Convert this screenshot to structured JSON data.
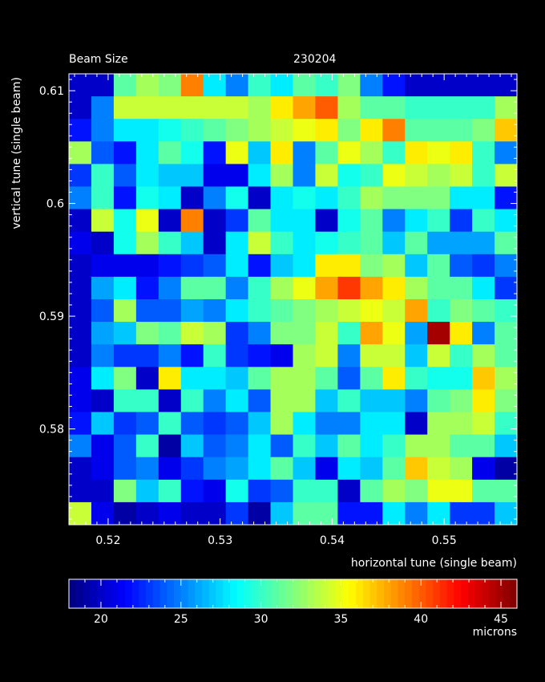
{
  "chart_data": {
    "type": "heatmap",
    "title": "Beam Size",
    "subtitle": "230204",
    "xlabel": "horizontal tune (single beam)",
    "ylabel": "vertical tune (single beam)",
    "x_ticks": [
      "0.52",
      "0.53",
      "0.54",
      "0.55"
    ],
    "y_ticks": [
      "0.58",
      "0.59",
      "0.6",
      "0.61"
    ],
    "xlim": [
      0.5165,
      0.5565
    ],
    "ylim": [
      0.5715,
      0.6115
    ],
    "colorbar": {
      "label": "microns",
      "ticks": [
        "20",
        "25",
        "30",
        "35",
        "40",
        "45"
      ],
      "range": [
        18,
        46
      ]
    },
    "x": [
      0.5175,
      0.5195,
      0.5215,
      0.5235,
      0.5255,
      0.5275,
      0.5295,
      0.5315,
      0.5335,
      0.5355,
      0.5375,
      0.5395,
      0.5415,
      0.5435,
      0.5455,
      0.5475,
      0.5495,
      0.5515,
      0.5535,
      0.5555
    ],
    "y": [
      0.6105,
      0.6085,
      0.6065,
      0.6045,
      0.6025,
      0.6005,
      0.5985,
      0.5965,
      0.5945,
      0.5925,
      0.5905,
      0.5885,
      0.5865,
      0.5845,
      0.5825,
      0.5805,
      0.5785,
      0.5765,
      0.5745,
      0.5725
    ],
    "values": [
      [
        20,
        20,
        31,
        33,
        32,
        39,
        28,
        25,
        30,
        28,
        31,
        30,
        32,
        25,
        22,
        20,
        20,
        20,
        20,
        20
      ],
      [
        20,
        25,
        34,
        34,
        34,
        34,
        34,
        34,
        33,
        36,
        38,
        40,
        33,
        31,
        31,
        30,
        30,
        30,
        30,
        33
      ],
      [
        22,
        25,
        28,
        28,
        29,
        30,
        31,
        32,
        33,
        34,
        35,
        36,
        32,
        36,
        39,
        31,
        31,
        31,
        32,
        37
      ],
      [
        33,
        24,
        22,
        28,
        31,
        29,
        22,
        35,
        27,
        36,
        25,
        31,
        35,
        33,
        30,
        36,
        35,
        36,
        30,
        25
      ],
      [
        23,
        30,
        24,
        28,
        27,
        27,
        21,
        21,
        28,
        33,
        25,
        34,
        29,
        30,
        35,
        34,
        33,
        34,
        30,
        34
      ],
      [
        25,
        30,
        22,
        29,
        28,
        20,
        25,
        29,
        20,
        28,
        29,
        28,
        30,
        33,
        32,
        32,
        32,
        28,
        28,
        22
      ],
      [
        20,
        34,
        29,
        35,
        20,
        39,
        20,
        23,
        31,
        28,
        28,
        20,
        29,
        31,
        25,
        28,
        30,
        23,
        30,
        28
      ],
      [
        21,
        20,
        29,
        33,
        30,
        27,
        20,
        28,
        34,
        30,
        28,
        29,
        30,
        31,
        27,
        31,
        26,
        26,
        26,
        31
      ],
      [
        20,
        21,
        21,
        21,
        22,
        23,
        24,
        28,
        22,
        27,
        28,
        36,
        36,
        32,
        33,
        27,
        31,
        24,
        23,
        25
      ],
      [
        20,
        26,
        28,
        22,
        25,
        31,
        31,
        25,
        30,
        33,
        35,
        38,
        41,
        38,
        36,
        33,
        31,
        31,
        28,
        23
      ],
      [
        20,
        24,
        33,
        24,
        24,
        26,
        25,
        28,
        30,
        31,
        32,
        33,
        34,
        35,
        34,
        38,
        30,
        32,
        31,
        30
      ],
      [
        20,
        26,
        27,
        32,
        31,
        34,
        33,
        23,
        25,
        32,
        32,
        34,
        30,
        38,
        35,
        26,
        45,
        36,
        25,
        31
      ],
      [
        20,
        25,
        23,
        23,
        25,
        22,
        30,
        23,
        22,
        21,
        33,
        34,
        25,
        34,
        34,
        27,
        34,
        30,
        33,
        31
      ],
      [
        21,
        28,
        32,
        20,
        36,
        28,
        28,
        27,
        31,
        33,
        33,
        31,
        24,
        31,
        36,
        30,
        29,
        29,
        37,
        33
      ],
      [
        21,
        20,
        30,
        30,
        20,
        30,
        25,
        28,
        24,
        33,
        33,
        27,
        30,
        27,
        27,
        25,
        31,
        32,
        36,
        32
      ],
      [
        22,
        27,
        23,
        24,
        30,
        24,
        23,
        24,
        27,
        33,
        28,
        25,
        25,
        28,
        28,
        20,
        33,
        33,
        34,
        30
      ],
      [
        25,
        21,
        24,
        30,
        19,
        27,
        24,
        25,
        28,
        24,
        30,
        27,
        31,
        28,
        30,
        33,
        33,
        31,
        31,
        27
      ],
      [
        20,
        21,
        24,
        25,
        21,
        23,
        25,
        26,
        28,
        31,
        27,
        21,
        28,
        27,
        31,
        37,
        34,
        33,
        21,
        19
      ],
      [
        20,
        20,
        32,
        27,
        30,
        22,
        21,
        29,
        23,
        24,
        30,
        30,
        20,
        31,
        33,
        32,
        35,
        35,
        31,
        31
      ],
      [
        34,
        21,
        19,
        20,
        21,
        20,
        20,
        23,
        19,
        27,
        31,
        31,
        22,
        22,
        28,
        25,
        28,
        23,
        23,
        27
      ]
    ]
  }
}
